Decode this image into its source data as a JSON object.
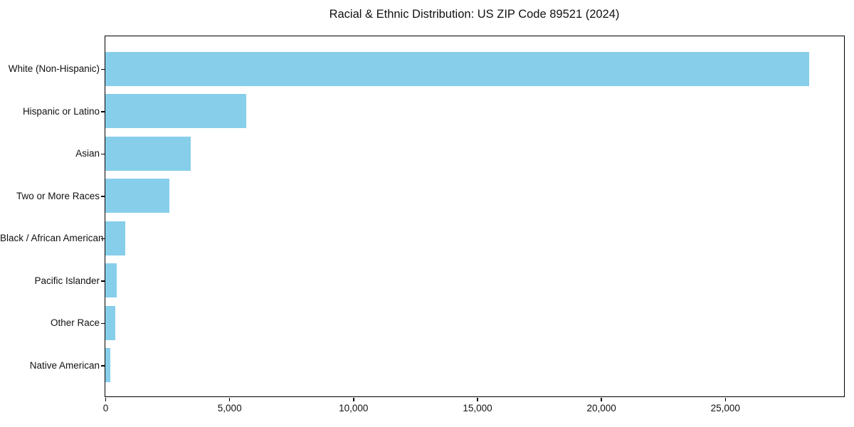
{
  "chart_data": {
    "type": "bar",
    "orientation": "horizontal",
    "title": "Racial & Ethnic Distribution: US ZIP Code 89521 (2024)",
    "categories": [
      "White (Non-Hispanic)",
      "Hispanic or Latino",
      "Asian",
      "Two or More Races",
      "Black / African American",
      "Pacific Islander",
      "Other Race",
      "Native American"
    ],
    "values": [
      28400,
      5670,
      3430,
      2570,
      800,
      470,
      410,
      200
    ],
    "xlabel": "",
    "ylabel": "",
    "xlim": [
      0,
      29800
    ],
    "xticks": [
      0,
      5000,
      10000,
      15000,
      20000,
      25000
    ],
    "xtick_labels": [
      "0",
      "5,000",
      "10,000",
      "15,000",
      "20,000",
      "25,000"
    ],
    "bar_color": "#87CEEB",
    "frame_color": "#000000",
    "text_color": "#111111",
    "grid": false,
    "legend": null
  }
}
